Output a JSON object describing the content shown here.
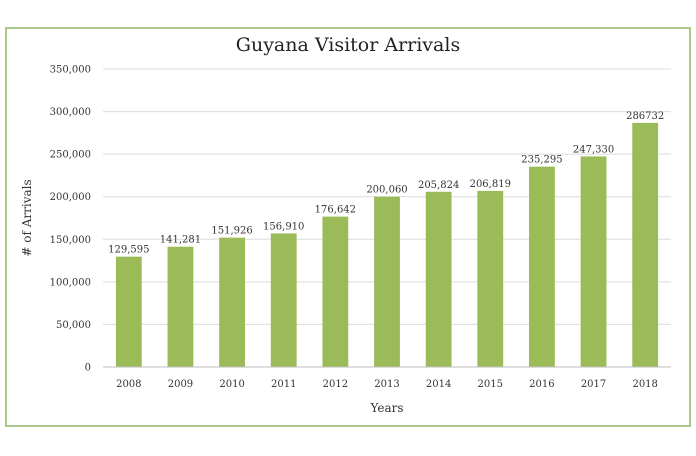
{
  "chart_data": {
    "type": "bar",
    "title": "Guyana Visitor Arrivals",
    "xlabel": "Years",
    "ylabel": "# of Arrivals",
    "categories": [
      "2008",
      "2009",
      "2010",
      "2011",
      "2012",
      "2013",
      "2014",
      "2015",
      "2016",
      "2017",
      "2018"
    ],
    "values": [
      129595,
      141281,
      151926,
      156910,
      176642,
      200060,
      205824,
      206819,
      235295,
      247330,
      286732
    ],
    "data_labels": [
      "129,595",
      "141,281",
      "151,926",
      "156,910",
      "176,642",
      "200,060",
      "205,824",
      "206,819",
      "235,295",
      "247,330",
      "286732"
    ],
    "ylim": [
      0,
      350000
    ],
    "yticks": [
      0,
      50000,
      100000,
      150000,
      200000,
      250000,
      300000,
      350000
    ],
    "ytick_labels": [
      "0",
      "50,000",
      "100,000",
      "150,000",
      "200,000",
      "250,000",
      "300,000",
      "350,000"
    ],
    "grid": true,
    "legend": "none",
    "colors": {
      "bar": "#9bbb59",
      "frame": "#a9c98a",
      "grid": "#dcdcdc"
    }
  }
}
